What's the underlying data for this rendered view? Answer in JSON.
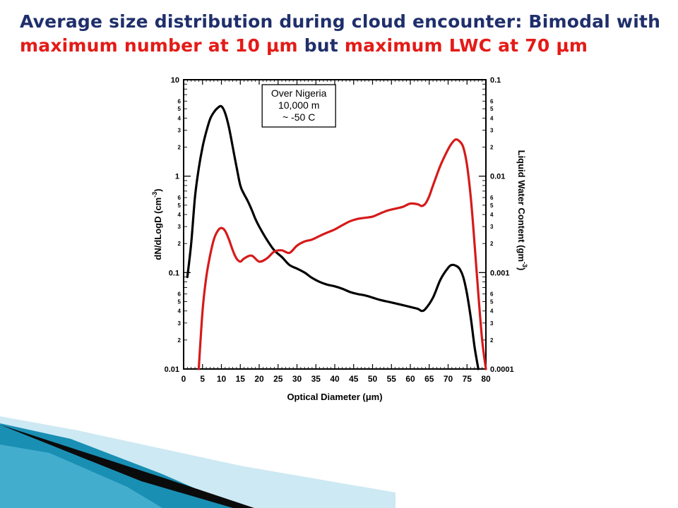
{
  "slide": {
    "title_line1": "Average size distribution during cloud encounter: Bimodal with",
    "title_line2_part1": "maximum number at 10 μm",
    "title_line2_part2": " but ",
    "title_line2_part3": "maximum LWC at 70 μm"
  },
  "colors": {
    "title_navy": "#1f2f6b",
    "title_red": "#e41b17",
    "number_series": "#000000",
    "lwc_series": "#d61a1a",
    "deco_teal": "#1a8fb4",
    "deco_light": "#a9d8ea"
  },
  "chart_data": {
    "type": "line",
    "title": "",
    "xlabel": "Optical Diameter (μm)",
    "ylabel_left": "dN/dLogD (cm-3)",
    "ylabel_right": "Liquid Water Content (gm-3)",
    "xlim": [
      0,
      80
    ],
    "x_ticks": [
      0,
      5,
      10,
      15,
      20,
      25,
      30,
      35,
      40,
      45,
      50,
      55,
      60,
      65,
      70,
      75,
      80
    ],
    "y_left": {
      "scale": "log",
      "lim": [
        0.01,
        10
      ],
      "major_ticks": [
        "0.01",
        "0.1",
        "1",
        "10"
      ],
      "major_values": [
        0.01,
        0.1,
        1,
        10
      ]
    },
    "y_right": {
      "scale": "log",
      "lim": [
        0.0001,
        0.1
      ],
      "major_ticks": [
        "0.0001",
        "0.001",
        "0.01",
        "0.1"
      ],
      "major_values": [
        0.0001,
        0.001,
        0.01,
        0.1
      ]
    },
    "minor_tick_labels": [
      "2",
      "3",
      "4",
      "5",
      "6"
    ],
    "annotation": [
      "Over Nigeria",
      "10,000 m",
      "~ -50 C"
    ],
    "series": [
      {
        "axis": "left",
        "color": "#000000",
        "x": [
          1,
          2,
          3,
          4,
          5,
          6,
          7,
          8,
          9,
          10,
          11,
          12,
          13,
          14,
          15,
          16,
          17,
          18,
          19,
          20,
          22,
          24,
          26,
          28,
          30,
          32,
          34,
          36,
          38,
          40,
          42,
          44,
          46,
          48,
          50,
          52,
          54,
          56,
          58,
          60,
          62,
          63,
          64,
          66,
          68,
          70,
          71,
          72,
          73,
          74,
          75,
          76,
          77,
          78
        ],
        "y": [
          0.09,
          0.2,
          0.6,
          1.2,
          2.0,
          2.9,
          3.9,
          4.6,
          5.1,
          5.3,
          4.5,
          3.2,
          2.0,
          1.25,
          0.8,
          0.65,
          0.55,
          0.45,
          0.36,
          0.3,
          0.22,
          0.17,
          0.145,
          0.12,
          0.11,
          0.1,
          0.088,
          0.08,
          0.075,
          0.072,
          0.068,
          0.063,
          0.06,
          0.058,
          0.055,
          0.052,
          0.05,
          0.048,
          0.046,
          0.044,
          0.042,
          0.04,
          0.042,
          0.055,
          0.085,
          0.112,
          0.12,
          0.118,
          0.11,
          0.09,
          0.06,
          0.034,
          0.017,
          0.009
        ]
      },
      {
        "axis": "right",
        "color": "#d61a1a",
        "x": [
          4,
          5,
          6,
          7,
          8,
          9,
          10,
          11,
          12,
          13,
          14,
          15,
          16,
          18,
          20,
          22,
          24,
          26,
          28,
          30,
          32,
          34,
          36,
          38,
          40,
          42,
          44,
          46,
          48,
          50,
          52,
          54,
          56,
          58,
          60,
          62,
          63,
          64,
          65,
          66,
          68,
          70,
          71,
          72,
          73,
          74,
          75,
          76,
          77,
          78,
          79,
          80
        ],
        "y": [
          0.0001,
          0.0004,
          0.0009,
          0.0015,
          0.0022,
          0.0027,
          0.0029,
          0.0027,
          0.0022,
          0.0017,
          0.0014,
          0.0013,
          0.0014,
          0.0015,
          0.0013,
          0.0014,
          0.00165,
          0.0017,
          0.0016,
          0.0019,
          0.0021,
          0.0022,
          0.0024,
          0.0026,
          0.0028,
          0.0031,
          0.0034,
          0.0036,
          0.0037,
          0.0038,
          0.0041,
          0.0044,
          0.0046,
          0.0048,
          0.0052,
          0.0051,
          0.0049,
          0.0052,
          0.0062,
          0.008,
          0.013,
          0.019,
          0.022,
          0.024,
          0.023,
          0.02,
          0.013,
          0.006,
          0.002,
          0.0006,
          0.0002,
          0.0001
        ]
      }
    ]
  }
}
